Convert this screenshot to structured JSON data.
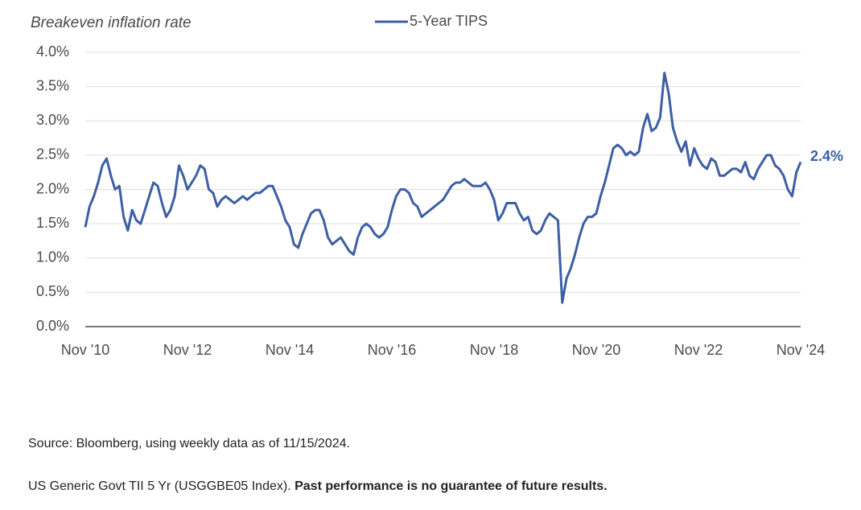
{
  "chart_data": {
    "type": "line",
    "title": "Breakeven inflation rate",
    "source": "Source: Bloomberg, using weekly data as of 11/15/2024.",
    "note": "US Generic Govt TII 5 Yr (USGGBE05 Index).",
    "disclaimer": "Past performance is no guarantee of future results.",
    "x": [
      "2010-11",
      "2010-12",
      "2011-01",
      "2011-02",
      "2011-03",
      "2011-04",
      "2011-05",
      "2011-06",
      "2011-07",
      "2011-08",
      "2011-09",
      "2011-10",
      "2011-11",
      "2011-12",
      "2012-01",
      "2012-02",
      "2012-03",
      "2012-04",
      "2012-05",
      "2012-06",
      "2012-07",
      "2012-08",
      "2012-09",
      "2012-10",
      "2012-11",
      "2012-12",
      "2013-01",
      "2013-02",
      "2013-03",
      "2013-04",
      "2013-05",
      "2013-06",
      "2013-07",
      "2013-08",
      "2013-09",
      "2013-10",
      "2013-11",
      "2013-12",
      "2014-01",
      "2014-02",
      "2014-03",
      "2014-04",
      "2014-05",
      "2014-06",
      "2014-07",
      "2014-08",
      "2014-09",
      "2014-10",
      "2014-11",
      "2014-12",
      "2015-01",
      "2015-02",
      "2015-03",
      "2015-04",
      "2015-05",
      "2015-06",
      "2015-07",
      "2015-08",
      "2015-09",
      "2015-10",
      "2015-11",
      "2015-12",
      "2016-01",
      "2016-02",
      "2016-03",
      "2016-04",
      "2016-05",
      "2016-06",
      "2016-07",
      "2016-08",
      "2016-09",
      "2016-10",
      "2016-11",
      "2016-12",
      "2017-01",
      "2017-02",
      "2017-03",
      "2017-04",
      "2017-05",
      "2017-06",
      "2017-07",
      "2017-08",
      "2017-09",
      "2017-10",
      "2017-11",
      "2017-12",
      "2018-01",
      "2018-02",
      "2018-03",
      "2018-04",
      "2018-05",
      "2018-06",
      "2018-07",
      "2018-08",
      "2018-09",
      "2018-10",
      "2018-11",
      "2018-12",
      "2019-01",
      "2019-02",
      "2019-03",
      "2019-04",
      "2019-05",
      "2019-06",
      "2019-07",
      "2019-08",
      "2019-09",
      "2019-10",
      "2019-11",
      "2019-12",
      "2020-01",
      "2020-02",
      "2020-03",
      "2020-04",
      "2020-05",
      "2020-06",
      "2020-07",
      "2020-08",
      "2020-09",
      "2020-10",
      "2020-11",
      "2020-12",
      "2021-01",
      "2021-02",
      "2021-03",
      "2021-04",
      "2021-05",
      "2021-06",
      "2021-07",
      "2021-08",
      "2021-09",
      "2021-10",
      "2021-11",
      "2021-12",
      "2022-01",
      "2022-02",
      "2022-03",
      "2022-04",
      "2022-05",
      "2022-06",
      "2022-07",
      "2022-08",
      "2022-09",
      "2022-10",
      "2022-11",
      "2022-12",
      "2023-01",
      "2023-02",
      "2023-03",
      "2023-04",
      "2023-05",
      "2023-06",
      "2023-07",
      "2023-08",
      "2023-09",
      "2023-10",
      "2023-11",
      "2023-12",
      "2024-01",
      "2024-02",
      "2024-03",
      "2024-04",
      "2024-05",
      "2024-06",
      "2024-07",
      "2024-08",
      "2024-09",
      "2024-10",
      "2024-11"
    ],
    "series": [
      {
        "name": "5-Year TIPS",
        "color": "#3d5fa3",
        "values": [
          1.45,
          1.75,
          1.9,
          2.1,
          2.35,
          2.45,
          2.2,
          2.0,
          2.05,
          1.6,
          1.4,
          1.7,
          1.55,
          1.5,
          1.7,
          1.9,
          2.1,
          2.05,
          1.8,
          1.6,
          1.7,
          1.9,
          2.35,
          2.2,
          2.0,
          2.1,
          2.2,
          2.35,
          2.3,
          2.0,
          1.95,
          1.75,
          1.85,
          1.9,
          1.85,
          1.8,
          1.85,
          1.9,
          1.85,
          1.9,
          1.95,
          1.95,
          2.0,
          2.05,
          2.05,
          1.9,
          1.75,
          1.55,
          1.45,
          1.2,
          1.15,
          1.35,
          1.5,
          1.65,
          1.7,
          1.7,
          1.55,
          1.3,
          1.2,
          1.25,
          1.3,
          1.2,
          1.1,
          1.05,
          1.3,
          1.45,
          1.5,
          1.45,
          1.35,
          1.3,
          1.35,
          1.45,
          1.7,
          1.9,
          2.0,
          2.0,
          1.95,
          1.8,
          1.75,
          1.6,
          1.65,
          1.7,
          1.75,
          1.8,
          1.85,
          1.95,
          2.05,
          2.1,
          2.1,
          2.15,
          2.1,
          2.05,
          2.05,
          2.05,
          2.1,
          2.0,
          1.85,
          1.55,
          1.65,
          1.8,
          1.8,
          1.8,
          1.65,
          1.55,
          1.6,
          1.4,
          1.35,
          1.4,
          1.55,
          1.65,
          1.6,
          1.55,
          0.35,
          0.7,
          0.85,
          1.05,
          1.3,
          1.5,
          1.6,
          1.6,
          1.65,
          1.9,
          2.1,
          2.35,
          2.6,
          2.65,
          2.6,
          2.5,
          2.55,
          2.5,
          2.55,
          2.9,
          3.1,
          2.85,
          2.9,
          3.05,
          3.7,
          3.4,
          2.9,
          2.7,
          2.55,
          2.7,
          2.35,
          2.6,
          2.45,
          2.35,
          2.3,
          2.45,
          2.4,
          2.2,
          2.2,
          2.25,
          2.3,
          2.3,
          2.25,
          2.4,
          2.2,
          2.15,
          2.3,
          2.4,
          2.5,
          2.5,
          2.35,
          2.3,
          2.2,
          2.0,
          1.9,
          2.25,
          2.4
        ]
      }
    ],
    "annotations": [
      {
        "x": "2024-11",
        "y": 2.4,
        "label": "2.4%"
      }
    ],
    "xlim": [
      "2010-11",
      "2024-11"
    ],
    "xticks": [
      {
        "value": "2010-11",
        "label": "Nov '10"
      },
      {
        "value": "2012-11",
        "label": "Nov '12"
      },
      {
        "value": "2014-11",
        "label": "Nov '14"
      },
      {
        "value": "2016-11",
        "label": "Nov '16"
      },
      {
        "value": "2018-11",
        "label": "Nov '18"
      },
      {
        "value": "2020-11",
        "label": "Nov '20"
      },
      {
        "value": "2022-11",
        "label": "Nov '22"
      },
      {
        "value": "2024-11",
        "label": "Nov '24"
      }
    ],
    "ylim": [
      0,
      4
    ],
    "yticks": [
      {
        "value": 0,
        "label": "0.0%"
      },
      {
        "value": 0.5,
        "label": "0.5%"
      },
      {
        "value": 1,
        "label": "1.0%"
      },
      {
        "value": 1.5,
        "label": "1.5%"
      },
      {
        "value": 2,
        "label": "2.0%"
      },
      {
        "value": 2.5,
        "label": "2.5%"
      },
      {
        "value": 3,
        "label": "3.0%"
      },
      {
        "value": 3.5,
        "label": "3.5%"
      },
      {
        "value": 4,
        "label": "4.0%"
      }
    ],
    "grid": true,
    "legend": "top"
  }
}
